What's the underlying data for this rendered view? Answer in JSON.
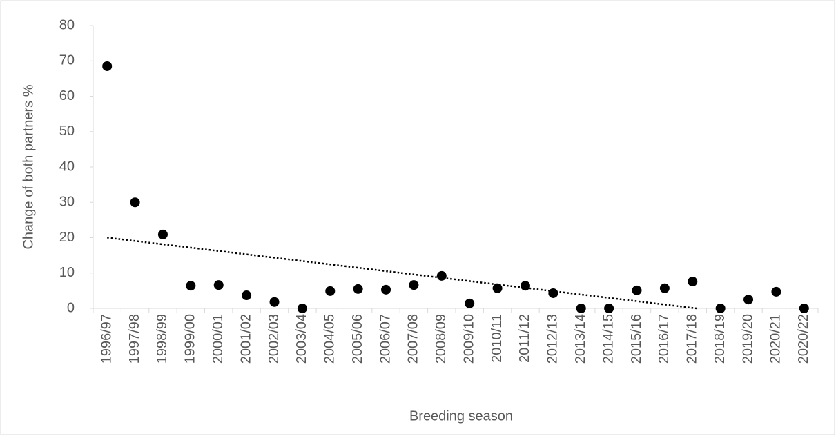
{
  "chart_data": {
    "type": "scatter",
    "x_label": "Breeding season",
    "y_label": "Change of both partners %",
    "categories": [
      "1996/97",
      "1997/98",
      "1998/99",
      "1999/00",
      "2000/01",
      "2001/02",
      "2002/03",
      "2003/04",
      "2004/05",
      "2005/06",
      "2006/07",
      "2007/08",
      "2008/09",
      "2009/10",
      "2010/11",
      "2011/12",
      "2012/13",
      "2013/14",
      "2014/15",
      "2015/16",
      "2016/17",
      "2017/18",
      "2018/19",
      "2019/20",
      "2020/21",
      "2020/22"
    ],
    "values": [
      68.5,
      30.0,
      20.9,
      6.4,
      6.6,
      3.7,
      1.8,
      0,
      4.9,
      5.5,
      5.3,
      6.6,
      9.2,
      1.4,
      5.7,
      6.4,
      4.3,
      0,
      0,
      5.1,
      5.7,
      7.6,
      0,
      2.5,
      4.7,
      0
    ],
    "color": "#000000",
    "trendline": "linear",
    "ylim": [
      0,
      80
    ],
    "yticks": [
      0,
      10,
      20,
      30,
      40,
      50,
      60,
      70,
      80
    ],
    "grid": false
  }
}
